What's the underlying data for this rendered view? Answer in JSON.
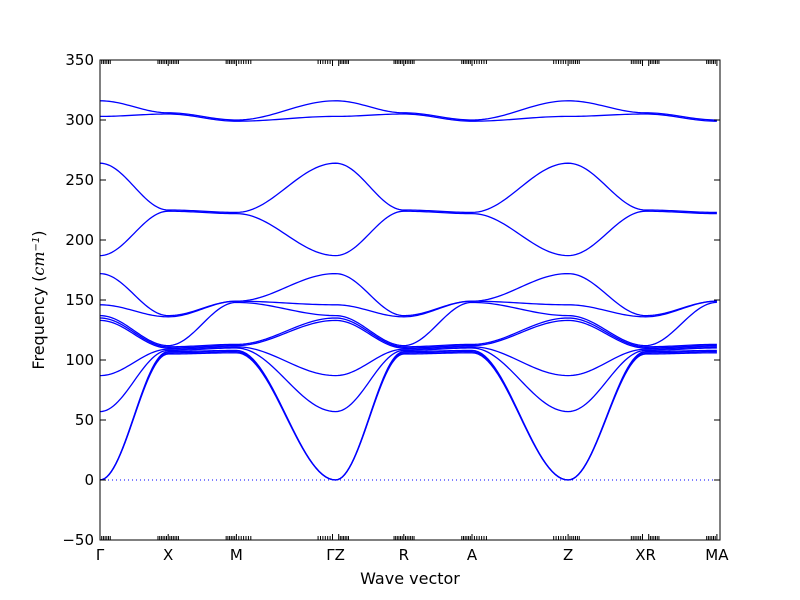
{
  "chart_data": {
    "type": "line",
    "xlabel": "Wave vector",
    "ylabel_prefix": "Frequency (",
    "ylabel_unit": "cm",
    "ylabel_exp": "−1",
    "ylabel_suffix": ")",
    "ylim": [
      -50,
      350
    ],
    "yticks": [
      -50,
      0,
      50,
      100,
      150,
      200,
      250,
      300,
      350
    ],
    "ytick_labels": [
      "−50",
      "0",
      "50",
      "100",
      "150",
      "200",
      "250",
      "300",
      "350"
    ],
    "xlim": [
      0,
      10
    ],
    "high_symmetry_points": [
      {
        "label": "Γ",
        "x": 0
      },
      {
        "label": "X",
        "x": 1.1
      },
      {
        "label": "M",
        "x": 2.2
      },
      {
        "label": "ΓZ",
        "x": 3.8
      },
      {
        "label": "R",
        "x": 4.9
      },
      {
        "label": "A",
        "x": 6.0
      },
      {
        "label": "Z",
        "x": 7.55
      },
      {
        "label": "XR",
        "x": 8.8
      },
      {
        "label": "MA",
        "x": 9.95
      }
    ],
    "segment_boundaries": [
      0,
      1.1,
      2.2,
      3.75,
      3.85,
      4.9,
      6.0,
      7.55,
      8.75,
      8.85,
      9.95,
      10
    ],
    "zero_line": {
      "y": 0,
      "style": "dotted"
    },
    "grid": false,
    "line_color": "#0000ff",
    "series_nodes": [
      {
        "x": [
          0,
          1.1,
          2.2,
          3.8,
          4.9,
          6.0,
          7.55,
          8.8,
          9.95
        ],
        "y": [
          0,
          105,
          106,
          0,
          105,
          106,
          0,
          105,
          106
        ]
      },
      {
        "x": [
          0,
          1.1,
          2.2,
          3.8,
          4.9,
          6.0,
          7.55,
          8.8,
          9.95
        ],
        "y": [
          0,
          106,
          107,
          0,
          106,
          107,
          0,
          106,
          107
        ]
      },
      {
        "x": [
          0,
          1.1,
          2.2,
          3.8,
          4.9,
          6.0,
          7.55,
          8.8,
          9.95
        ],
        "y": [
          0,
          107,
          108,
          0,
          107,
          108,
          0,
          107,
          108
        ]
      },
      {
        "x": [
          0,
          1.1,
          2.2,
          3.8,
          4.9,
          6.0,
          7.55,
          8.8,
          9.95
        ],
        "y": [
          57,
          108,
          110,
          57,
          108,
          110,
          57,
          108,
          110
        ]
      },
      {
        "x": [
          0,
          1.1,
          2.2,
          3.8,
          4.9,
          6.0,
          7.55,
          8.8,
          9.95
        ],
        "y": [
          87,
          109,
          111,
          87,
          109,
          111,
          87,
          109,
          111
        ]
      },
      {
        "x": [
          0,
          1.1,
          2.2,
          3.8,
          4.9,
          6.0,
          7.55,
          8.8,
          9.95
        ],
        "y": [
          133,
          110,
          112,
          133,
          110,
          112,
          133,
          110,
          112
        ]
      },
      {
        "x": [
          0,
          1.1,
          2.2,
          3.8,
          4.9,
          6.0,
          7.55,
          8.8,
          9.95
        ],
        "y": [
          135,
          111,
          113,
          135,
          111,
          113,
          135,
          111,
          113
        ]
      },
      {
        "x": [
          0,
          1.1,
          2.2,
          3.8,
          4.9,
          6.0,
          7.55,
          8.8,
          9.95
        ],
        "y": [
          137,
          112,
          148,
          137,
          112,
          148,
          137,
          112,
          148
        ]
      },
      {
        "x": [
          0,
          1.1,
          2.2,
          3.8,
          4.9,
          6.0,
          7.55,
          8.8,
          9.95
        ],
        "y": [
          146,
          136,
          149,
          146,
          136,
          149,
          146,
          136,
          149
        ]
      },
      {
        "x": [
          0,
          1.1,
          2.2,
          3.8,
          4.9,
          6.0,
          7.55,
          8.8,
          9.95
        ],
        "y": [
          172,
          137,
          149,
          172,
          137,
          149,
          172,
          137,
          149
        ]
      },
      {
        "x": [
          0,
          1.1,
          2.2,
          3.8,
          4.9,
          6.0,
          7.55,
          8.8,
          9.95
        ],
        "y": [
          187,
          224,
          222,
          187,
          224,
          222,
          187,
          224,
          222
        ]
      },
      {
        "x": [
          0,
          1.1,
          2.2,
          3.8,
          4.9,
          6.0,
          7.55,
          8.8,
          9.95
        ],
        "y": [
          264,
          225,
          223,
          264,
          225,
          223,
          264,
          225,
          223
        ]
      },
      {
        "x": [
          0,
          1.1,
          2.2,
          3.8,
          4.9,
          6.0,
          7.55,
          8.8,
          9.95
        ],
        "y": [
          303,
          305,
          299,
          303,
          305,
          299,
          303,
          305,
          299
        ]
      },
      {
        "x": [
          0,
          1.1,
          2.2,
          3.8,
          4.9,
          6.0,
          7.55,
          8.8,
          9.95
        ],
        "y": [
          316,
          306,
          300,
          316,
          306,
          300,
          316,
          306,
          300
        ]
      }
    ]
  }
}
